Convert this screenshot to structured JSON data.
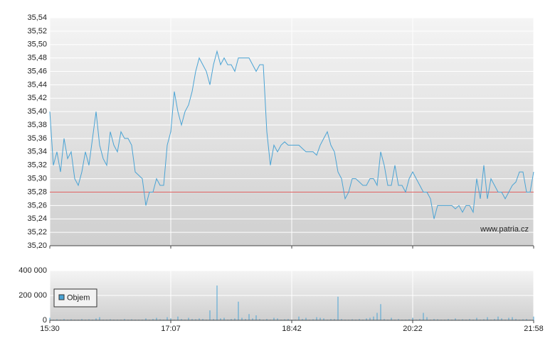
{
  "chart_data": [
    {
      "type": "line",
      "annotation": "www.patria.cz",
      "color": "#4aa3d4",
      "grid": true,
      "reference_line": {
        "value": 35.28,
        "color": "#e06060"
      },
      "xlim": [
        0,
        136
      ],
      "ylim": [
        35.2,
        35.54
      ],
      "yticks": [
        {
          "value": 35.2,
          "label": "35,20"
        },
        {
          "value": 35.22,
          "label": "35,22"
        },
        {
          "value": 35.24,
          "label": "35,24"
        },
        {
          "value": 35.26,
          "label": "35,26"
        },
        {
          "value": 35.28,
          "label": "35,28"
        },
        {
          "value": 35.3,
          "label": "35,30"
        },
        {
          "value": 35.32,
          "label": "35,32"
        },
        {
          "value": 35.34,
          "label": "35,34"
        },
        {
          "value": 35.36,
          "label": "35,36"
        },
        {
          "value": 35.38,
          "label": "35,38"
        },
        {
          "value": 35.4,
          "label": "35,40"
        },
        {
          "value": 35.42,
          "label": "35,42"
        },
        {
          "value": 35.44,
          "label": "35,44"
        },
        {
          "value": 35.46,
          "label": "35,46"
        },
        {
          "value": 35.48,
          "label": "35,48"
        },
        {
          "value": 35.5,
          "label": "35,50"
        },
        {
          "value": 35.52,
          "label": "35,52"
        },
        {
          "value": 35.54,
          "label": "35,54"
        }
      ],
      "values": [
        35.4,
        35.32,
        35.34,
        35.31,
        35.36,
        35.33,
        35.34,
        35.3,
        35.29,
        35.31,
        35.34,
        35.32,
        35.36,
        35.4,
        35.35,
        35.33,
        35.32,
        35.37,
        35.35,
        35.34,
        35.37,
        35.36,
        35.36,
        35.35,
        35.31,
        35.305,
        35.3,
        35.26,
        35.28,
        35.28,
        35.3,
        35.29,
        35.29,
        35.35,
        35.37,
        35.43,
        35.4,
        35.38,
        35.4,
        35.41,
        35.43,
        35.46,
        35.48,
        35.47,
        35.46,
        35.44,
        35.47,
        35.49,
        35.47,
        35.48,
        35.47,
        35.47,
        35.46,
        35.48,
        35.48,
        35.48,
        35.48,
        35.47,
        35.46,
        35.47,
        35.47,
        35.37,
        35.32,
        35.35,
        35.34,
        35.35,
        35.355,
        35.35,
        35.35,
        35.35,
        35.35,
        35.345,
        35.34,
        35.34,
        35.34,
        35.335,
        35.35,
        35.36,
        35.37,
        35.35,
        35.34,
        35.31,
        35.3,
        35.27,
        35.28,
        35.3,
        35.3,
        35.295,
        35.29,
        35.29,
        35.3,
        35.3,
        35.29,
        35.34,
        35.32,
        35.29,
        35.29,
        35.32,
        35.29,
        35.29,
        35.28,
        35.3,
        35.31,
        35.3,
        35.29,
        35.28,
        35.28,
        35.27,
        35.24,
        35.26,
        35.26,
        35.26,
        35.26,
        35.26,
        35.255,
        35.26,
        35.25,
        35.26,
        35.26,
        35.25,
        35.3,
        35.27,
        35.32,
        35.27,
        35.3,
        35.29,
        35.28,
        35.28,
        35.27,
        35.28,
        35.29,
        35.295,
        35.31,
        35.31,
        35.28,
        35.28,
        35.31
      ]
    },
    {
      "type": "bar",
      "grid": true,
      "xlim": [
        0,
        136
      ],
      "ylim": [
        0,
        400000
      ],
      "yticks": [
        0,
        {
          "value": 200000,
          "label": "200 000"
        },
        {
          "value": 400000,
          "label": "400 000"
        }
      ],
      "xticks": [
        {
          "value": 0,
          "label": "15:30"
        },
        {
          "value": 34,
          "label": "17:07"
        },
        {
          "value": 68,
          "label": "18:42"
        },
        {
          "value": 102,
          "label": "20:22"
        },
        {
          "value": 136,
          "label": "21:58"
        }
      ],
      "series": [
        {
          "name": "Objem",
          "color": "#4aa3d4",
          "values": [
            20000,
            5000,
            8000,
            5000,
            10000,
            5000,
            8000,
            5000,
            5000,
            10000,
            5000,
            8000,
            5000,
            15000,
            25000,
            5000,
            5000,
            8000,
            5000,
            5000,
            5000,
            10000,
            5000,
            8000,
            5000,
            5000,
            5000,
            15000,
            5000,
            10000,
            20000,
            8000,
            5000,
            25000,
            15000,
            5000,
            30000,
            10000,
            5000,
            20000,
            10000,
            8000,
            15000,
            10000,
            5000,
            80000,
            10000,
            280000,
            15000,
            20000,
            5000,
            10000,
            15000,
            150000,
            20000,
            10000,
            50000,
            15000,
            40000,
            10000,
            5000,
            10000,
            5000,
            20000,
            15000,
            5000,
            8000,
            10000,
            5000,
            5000,
            30000,
            10000,
            20000,
            5000,
            8000,
            25000,
            20000,
            15000,
            5000,
            10000,
            10000,
            190000,
            10000,
            5000,
            5000,
            8000,
            5000,
            10000,
            5000,
            15000,
            20000,
            30000,
            60000,
            130000,
            10000,
            5000,
            20000,
            5000,
            10000,
            5000,
            5000,
            8000,
            20000,
            5000,
            10000,
            60000,
            25000,
            5000,
            10000,
            8000,
            5000,
            5000,
            10000,
            5000,
            15000,
            5000,
            8000,
            5000,
            10000,
            5000,
            20000,
            5000,
            8000,
            25000,
            5000,
            10000,
            30000,
            15000,
            5000,
            20000,
            25000,
            10000,
            5000,
            8000,
            10000,
            5000,
            30000
          ]
        }
      ]
    }
  ]
}
